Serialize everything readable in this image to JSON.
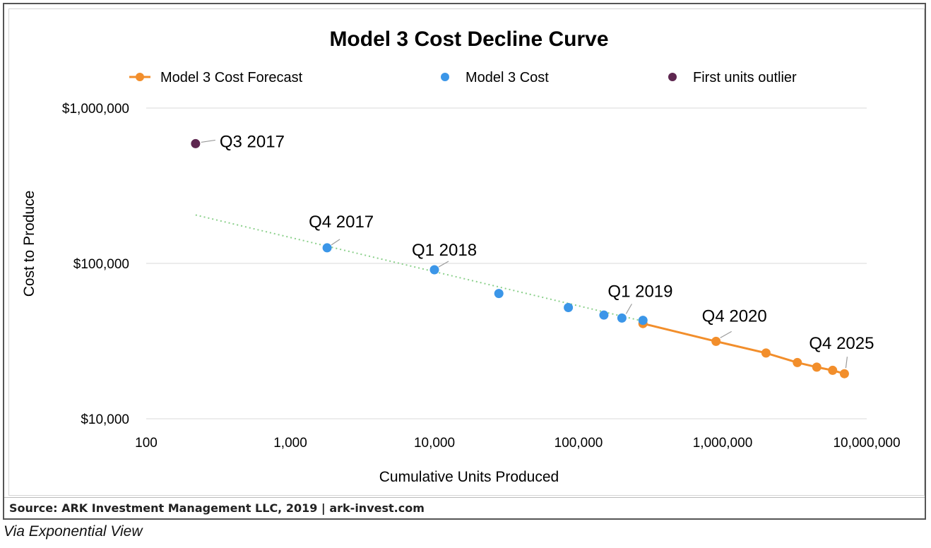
{
  "chart_data": {
    "type": "scatter",
    "title": "Model 3 Cost Decline Curve",
    "xlabel": "Cumulative Units Produced",
    "ylabel": "Cost to Produce",
    "x_scale": "log",
    "y_scale": "log",
    "xlim": [
      100,
      10000000
    ],
    "ylim": [
      10000,
      1000000
    ],
    "x_ticks": [
      {
        "value": 100,
        "label": "100"
      },
      {
        "value": 1000,
        "label": "1,000"
      },
      {
        "value": 10000,
        "label": "10,000"
      },
      {
        "value": 100000,
        "label": "100,000"
      },
      {
        "value": 1000000,
        "label": "1,000,000"
      },
      {
        "value": 10000000,
        "label": "10,000,000"
      }
    ],
    "y_ticks": [
      {
        "value": 10000,
        "label": "$10,000"
      },
      {
        "value": 100000,
        "label": "$100,000"
      },
      {
        "value": 1000000,
        "label": "$1,000,000"
      }
    ],
    "grid": "horizontal",
    "legend_position": "top",
    "series": [
      {
        "name": "Model 3 Cost Forecast",
        "color": "#F28E2B",
        "style": "line-markers",
        "points": [
          {
            "x": 280000,
            "y": 41000
          },
          {
            "x": 900000,
            "y": 31500
          },
          {
            "x": 2000000,
            "y": 26500
          },
          {
            "x": 3300000,
            "y": 23000
          },
          {
            "x": 4500000,
            "y": 21500
          },
          {
            "x": 5800000,
            "y": 20500
          },
          {
            "x": 7000000,
            "y": 19500
          }
        ]
      },
      {
        "name": "Model 3 Cost",
        "color": "#3B96E8",
        "style": "markers",
        "points": [
          {
            "x": 1800,
            "y": 126000
          },
          {
            "x": 10000,
            "y": 91000
          },
          {
            "x": 28000,
            "y": 64000
          },
          {
            "x": 85000,
            "y": 52000
          },
          {
            "x": 150000,
            "y": 46500
          },
          {
            "x": 200000,
            "y": 44500
          },
          {
            "x": 280000,
            "y": 43000
          }
        ]
      },
      {
        "name": "First units outlier",
        "color": "#5E2750",
        "style": "markers",
        "points": [
          {
            "x": 220,
            "y": 590000
          }
        ]
      }
    ],
    "trendline": {
      "color": "#8BD08B",
      "style": "dotted",
      "from": {
        "x": 220,
        "y": 205000
      },
      "to": {
        "x": 280000,
        "y": 42500
      }
    },
    "annotations": [
      {
        "text": "Q3 2017",
        "x": 220,
        "y": 590000
      },
      {
        "text": "Q4 2017",
        "x": 1800,
        "y": 126000
      },
      {
        "text": "Q1 2018",
        "x": 10000,
        "y": 91000
      },
      {
        "text": "Q1 2019",
        "x": 200000,
        "y": 44500
      },
      {
        "text": "Q4 2020",
        "x": 900000,
        "y": 31500
      },
      {
        "text": "Q4 2025",
        "x": 7000000,
        "y": 19500
      }
    ]
  },
  "footer": {
    "source": "Source: ARK Investment Management LLC, 2019 | ark-invest.com",
    "via": "Via Exponential View"
  }
}
